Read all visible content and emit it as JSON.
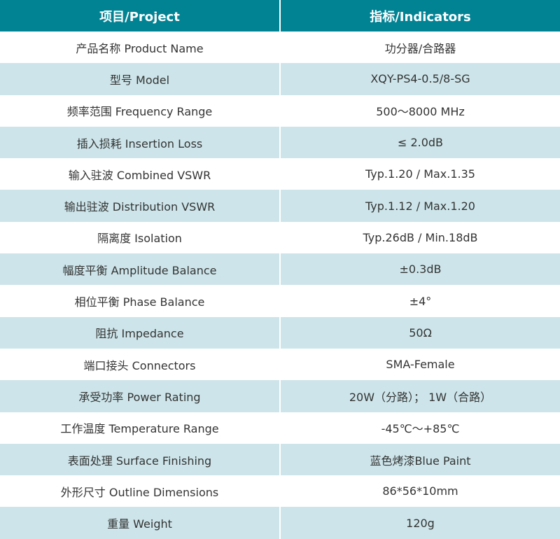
{
  "header": {
    "project": "项目/Project",
    "indicators": "指标/Indicators"
  },
  "rows": [
    {
      "project": "产品名称 Product Name",
      "value": "功分器/合路器"
    },
    {
      "project": "型号 Model",
      "value": "XQY-PS4-0.5/8-SG"
    },
    {
      "project": "频率范围 Frequency Range",
      "value": "500～8000 MHz"
    },
    {
      "project": "插入损耗 Insertion Loss",
      "value": "≤ 2.0dB"
    },
    {
      "project": "输入驻波 Combined VSWR",
      "value": "Typ.1.20 / Max.1.35"
    },
    {
      "project": "输出驻波 Distribution VSWR",
      "value": "Typ.1.12 / Max.1.20"
    },
    {
      "project": "隔离度 Isolation",
      "value": "Typ.26dB / Min.18dB"
    },
    {
      "project": "幅度平衡 Amplitude Balance",
      "value": "±0.3dB"
    },
    {
      "project": "相位平衡 Phase Balance",
      "value": "±4°"
    },
    {
      "project": "阻抗 Impedance",
      "value": "50Ω"
    },
    {
      "project": "端口接头 Connectors",
      "value": "SMA-Female"
    },
    {
      "project": "承受功率 Power Rating",
      "value": "20W（分路）； 1W（合路）"
    },
    {
      "project": "工作温度 Temperature Range",
      "value": "-45℃～+85℃"
    },
    {
      "project": "表面处理 Surface Finishing",
      "value": "蓝色烤漆Blue Paint"
    },
    {
      "project": "外形尺寸 Outline Dimensions",
      "value": "86*56*10mm"
    },
    {
      "project": "重量 Weight",
      "value": "120g"
    }
  ],
  "colors": {
    "header": "#028394",
    "alt_row": "#cde5ea"
  }
}
